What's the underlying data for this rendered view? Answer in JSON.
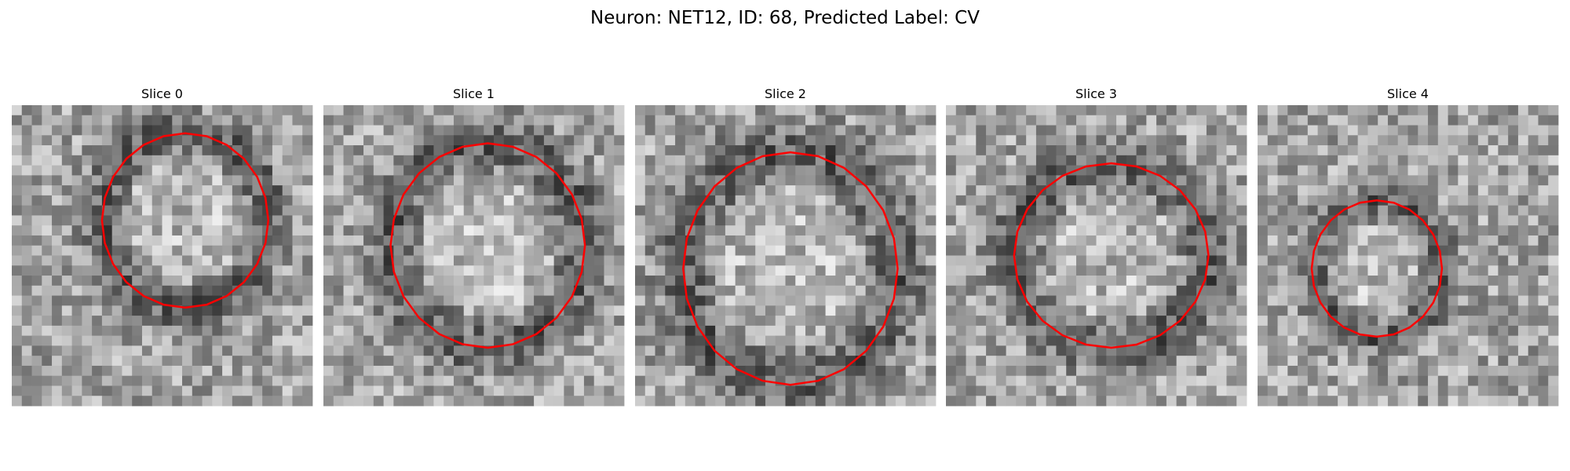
{
  "title": "Neuron: NET12, ID: 68, Predicted Label: CV",
  "panels": [
    {
      "title": "Slice 0"
    },
    {
      "title": "Slice 1"
    },
    {
      "title": "Slice 2"
    },
    {
      "title": "Slice 3"
    },
    {
      "title": "Slice 4"
    }
  ]
}
